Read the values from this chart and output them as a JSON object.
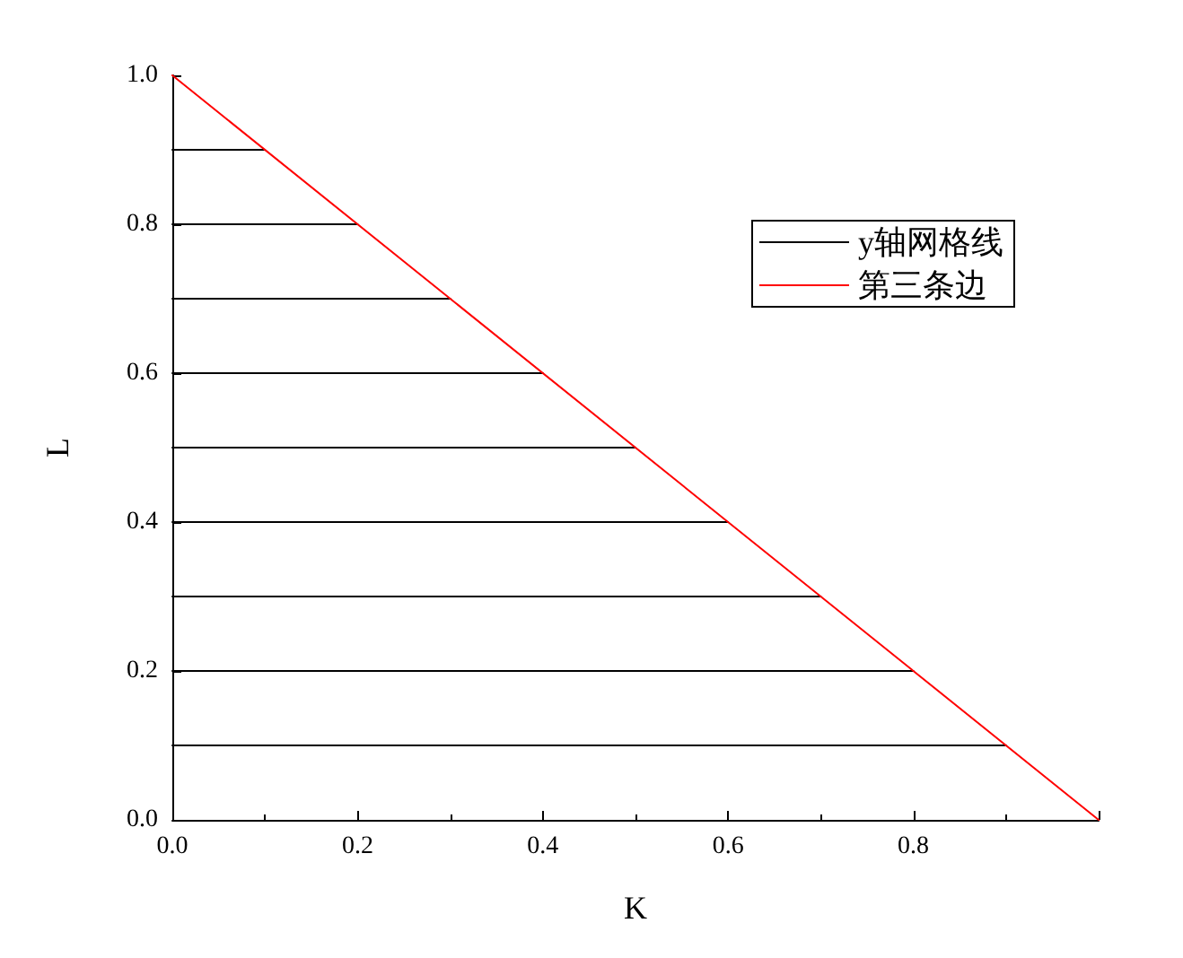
{
  "chart_data": {
    "type": "line",
    "xlabel": "K",
    "ylabel": "L",
    "series": [
      {
        "name": "y轴网格线",
        "color": "#000000",
        "x": [
          0,
          0.9
        ],
        "values": [
          0.1,
          0.1
        ]
      },
      {
        "color": "#000000",
        "x": [
          0,
          0.8
        ],
        "values": [
          0.2,
          0.2
        ]
      },
      {
        "color": "#000000",
        "x": [
          0,
          0.7
        ],
        "values": [
          0.3,
          0.3
        ]
      },
      {
        "color": "#000000",
        "x": [
          0,
          0.6
        ],
        "values": [
          0.4,
          0.4
        ]
      },
      {
        "color": "#000000",
        "x": [
          0,
          0.5
        ],
        "values": [
          0.5,
          0.5
        ]
      },
      {
        "color": "#000000",
        "x": [
          0,
          0.4
        ],
        "values": [
          0.6,
          0.6
        ]
      },
      {
        "color": "#000000",
        "x": [
          0,
          0.3
        ],
        "values": [
          0.7,
          0.7
        ]
      },
      {
        "color": "#000000",
        "x": [
          0,
          0.2
        ],
        "values": [
          0.8,
          0.8
        ]
      },
      {
        "color": "#000000",
        "x": [
          0,
          0.1
        ],
        "values": [
          0.9,
          0.9
        ]
      },
      {
        "name": "第三条边",
        "color": "#ff0000",
        "x": [
          0,
          1
        ],
        "values": [
          1,
          0
        ]
      }
    ],
    "xlim": [
      0,
      1
    ],
    "xticks": [
      {
        "value": 0,
        "label": "0.0"
      },
      0.2,
      0.4,
      0.6,
      0.8,
      {
        "value": 1,
        "label": null
      }
    ],
    "ylim": [
      0,
      1
    ],
    "yticks": [
      {
        "value": 0,
        "label": "0.0"
      },
      0.2,
      0.4,
      0.6,
      0.8,
      {
        "value": 1,
        "label": "1.0"
      }
    ],
    "legend": "top right",
    "marker": "none",
    "line_style": "solid"
  }
}
